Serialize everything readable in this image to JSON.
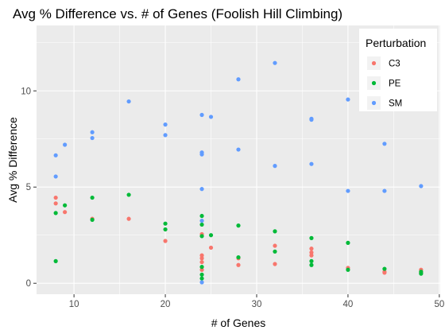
{
  "chart_data": {
    "type": "scatter",
    "title": "Avg % Difference vs. # of Genes (Foolish Hill Climbing)",
    "xlabel": "# of Genes",
    "ylabel": "Avg % Difference",
    "xlim": [
      5.9,
      50.1
    ],
    "ylim": [
      -0.57,
      13.4
    ],
    "x_ticks": [
      10,
      20,
      30,
      40,
      50
    ],
    "y_ticks": [
      0,
      5,
      10
    ],
    "grid": true,
    "legend": {
      "title": "Perturbation",
      "position": "top-right"
    },
    "series": [
      {
        "name": "C3",
        "color": "#F8766D",
        "points": [
          [
            8,
            4.45
          ],
          [
            8,
            4.15
          ],
          [
            9,
            3.7
          ],
          [
            12,
            3.35
          ],
          [
            16,
            3.35
          ],
          [
            20,
            2.2
          ],
          [
            24,
            2.55
          ],
          [
            24,
            1.45
          ],
          [
            24,
            1.3
          ],
          [
            24,
            1.1
          ],
          [
            24,
            0.7
          ],
          [
            25,
            1.85
          ],
          [
            28,
            1.3
          ],
          [
            28,
            0.95
          ],
          [
            32,
            1.95
          ],
          [
            32,
            1.0
          ],
          [
            36,
            1.8
          ],
          [
            36,
            1.6
          ],
          [
            36,
            1.45
          ],
          [
            40,
            0.8
          ],
          [
            44,
            0.6
          ],
          [
            44,
            0.55
          ],
          [
            48,
            0.7
          ],
          [
            48,
            0.55
          ]
        ]
      },
      {
        "name": "PE",
        "color": "#00BA38",
        "points": [
          [
            8,
            3.65
          ],
          [
            8,
            1.15
          ],
          [
            9,
            4.05
          ],
          [
            12,
            4.45
          ],
          [
            12,
            3.3
          ],
          [
            16,
            4.6
          ],
          [
            20,
            3.1
          ],
          [
            20,
            2.8
          ],
          [
            24,
            3.5
          ],
          [
            24,
            3.05
          ],
          [
            24,
            2.45
          ],
          [
            24,
            0.85
          ],
          [
            24,
            0.45
          ],
          [
            24,
            0.25
          ],
          [
            25,
            2.5
          ],
          [
            28,
            3.0
          ],
          [
            28,
            1.35
          ],
          [
            32,
            2.7
          ],
          [
            32,
            1.65
          ],
          [
            36,
            2.35
          ],
          [
            36,
            1.15
          ],
          [
            36,
            0.95
          ],
          [
            40,
            2.1
          ],
          [
            40,
            0.7
          ],
          [
            44,
            0.75
          ],
          [
            48,
            0.6
          ],
          [
            48,
            0.5
          ]
        ]
      },
      {
        "name": "SM",
        "color": "#619CFF",
        "points": [
          [
            8,
            6.65
          ],
          [
            8,
            5.55
          ],
          [
            9,
            7.2
          ],
          [
            12,
            7.85
          ],
          [
            12,
            7.55
          ],
          [
            16,
            9.45
          ],
          [
            20,
            8.25
          ],
          [
            20,
            7.7
          ],
          [
            24,
            8.75
          ],
          [
            24,
            6.8
          ],
          [
            24,
            6.7
          ],
          [
            24,
            4.9
          ],
          [
            24,
            3.25
          ],
          [
            24,
            0.05
          ],
          [
            25,
            8.65
          ],
          [
            28,
            10.6
          ],
          [
            28,
            6.95
          ],
          [
            32,
            11.45
          ],
          [
            32,
            6.1
          ],
          [
            36,
            8.55
          ],
          [
            36,
            8.5
          ],
          [
            36,
            6.2
          ],
          [
            40,
            9.55
          ],
          [
            40,
            4.8
          ],
          [
            44,
            7.25
          ],
          [
            44,
            4.8
          ],
          [
            48,
            5.05
          ]
        ]
      }
    ]
  }
}
